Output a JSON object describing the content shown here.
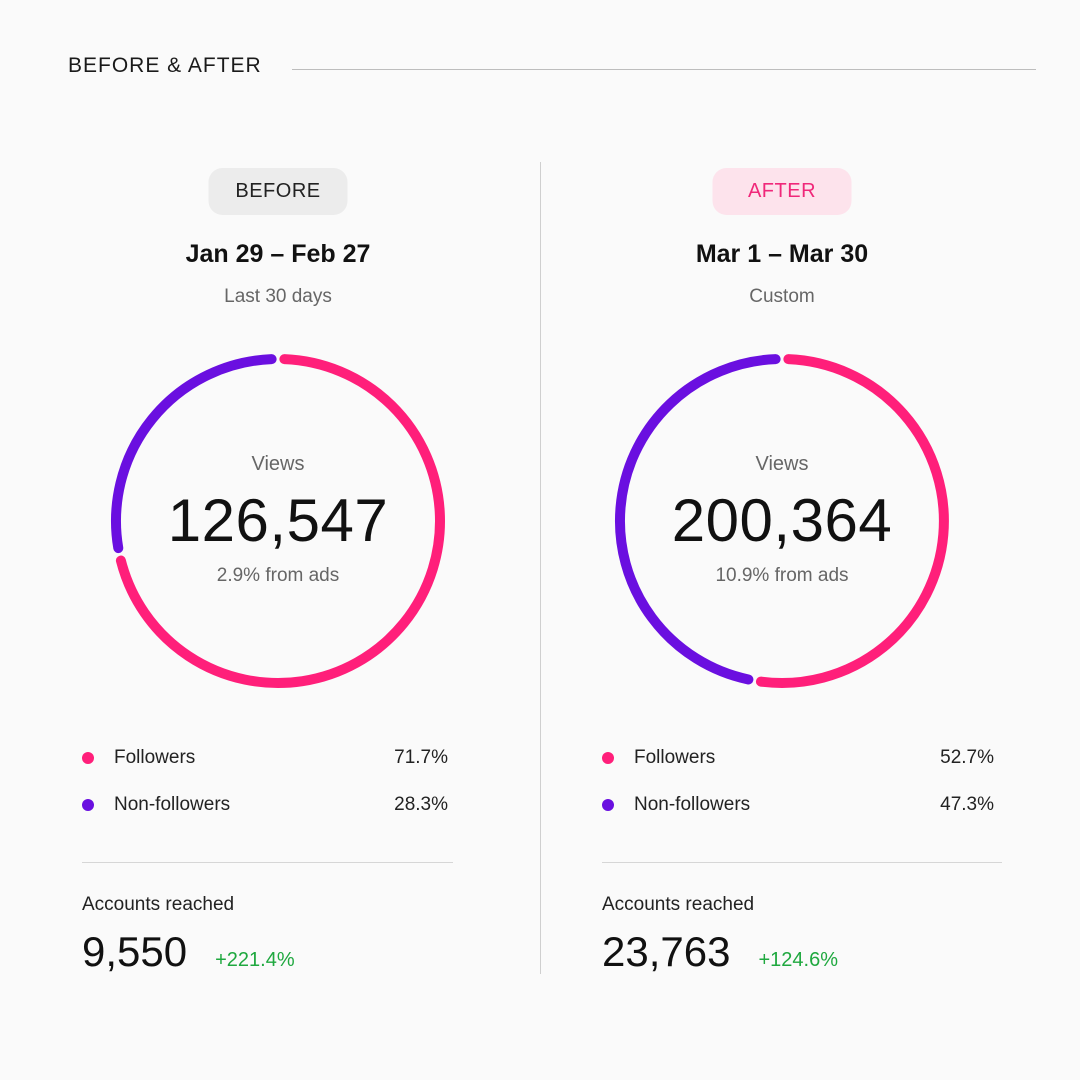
{
  "header": {
    "title": "BEFORE & AFTER"
  },
  "colors": {
    "followers": "#ff1f7a",
    "non_followers": "#6a0fe0",
    "positive": "#1fa83f"
  },
  "panels": {
    "before": {
      "tag": "BEFORE",
      "range": "Jan 29 – Feb 27",
      "range_sub": "Last 30 days",
      "views_label": "Views",
      "views_value": "126,547",
      "ads_text": "2.9% from ads",
      "legend": [
        {
          "label": "Followers",
          "pct": "71.7%",
          "value": 71.7
        },
        {
          "label": "Non-followers",
          "pct": "28.3%",
          "value": 28.3
        }
      ],
      "accounts_label": "Accounts reached",
      "accounts_value": "9,550",
      "accounts_change": "+221.4%"
    },
    "after": {
      "tag": "AFTER",
      "range": "Mar 1 – Mar 30",
      "range_sub": "Custom",
      "views_label": "Views",
      "views_value": "200,364",
      "ads_text": "10.9% from ads",
      "legend": [
        {
          "label": "Followers",
          "pct": "52.7%",
          "value": 52.7
        },
        {
          "label": "Non-followers",
          "pct": "47.3%",
          "value": 47.3
        }
      ],
      "accounts_label": "Accounts reached",
      "accounts_value": "23,763",
      "accounts_change": "+124.6%"
    }
  }
}
